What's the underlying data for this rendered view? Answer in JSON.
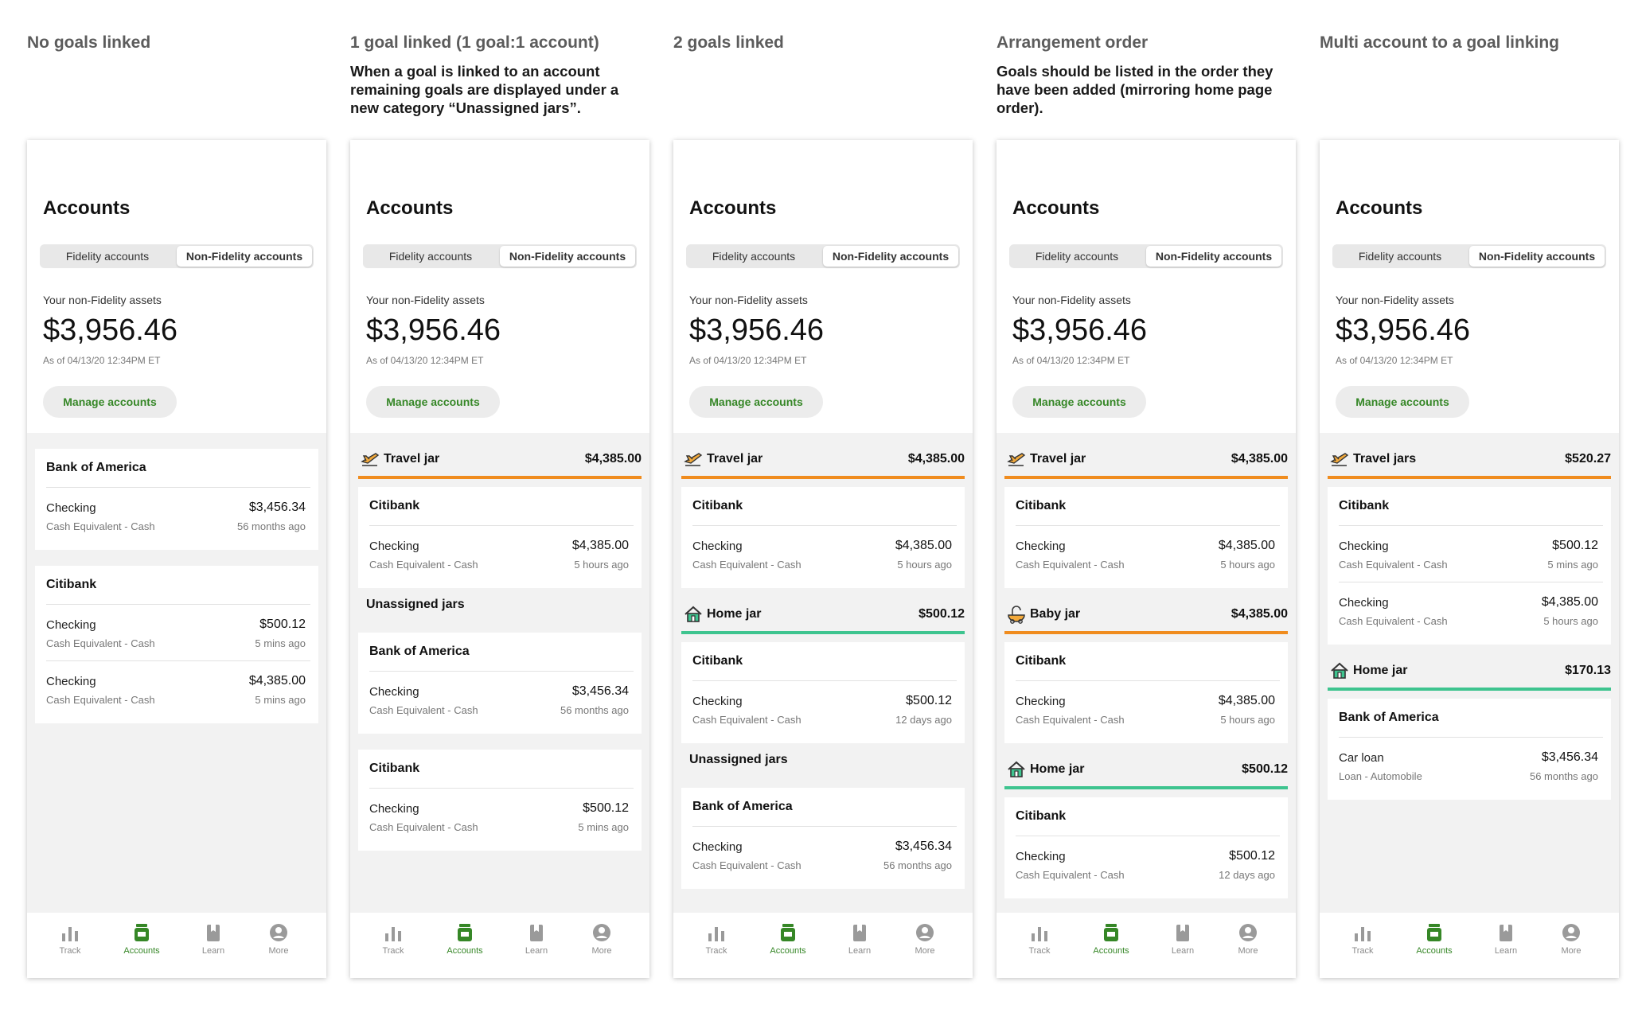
{
  "common": {
    "accounts_title": "Accounts",
    "tab_fidelity": "Fidelity accounts",
    "tab_non_fidelity": "Non-Fidelity accounts",
    "assets_label": "Your non-Fidelity assets",
    "assets_value": "$3,956.46",
    "as_of": "As of 04/13/20 12:34PM ET",
    "manage_button": "Manage accounts",
    "unassigned_label": "Unassigned jars",
    "nav": {
      "track": "Track",
      "accounts": "Accounts",
      "learn": "Learn",
      "more": "More"
    }
  },
  "colors": {
    "accent_green": "#368727",
    "orange_line": "#f08c1e",
    "teal_line": "#3ec48f",
    "background_gray": "#f2f2f2"
  },
  "icons": [
    "travel-jar-icon",
    "home-jar-icon",
    "baby-jar-icon",
    "track-icon",
    "accounts-icon",
    "learn-icon",
    "more-icon"
  ],
  "columns": [
    {
      "heading": "No goals linked",
      "note": "",
      "items": [
        {
          "kind": "card",
          "bank": "Bank of America",
          "rows": [
            {
              "type": "Checking",
              "sub": "Cash Equivalent - Cash",
              "amount": "$3,456.34",
              "time": "56 months ago"
            }
          ]
        },
        {
          "kind": "card",
          "bank": "Citibank",
          "rows": [
            {
              "type": "Checking",
              "sub": "Cash Equivalent - Cash",
              "amount": "$500.12",
              "time": "5 mins ago"
            },
            {
              "type": "Checking",
              "sub": "Cash Equivalent - Cash",
              "amount": "$4,385.00",
              "time": "5 mins ago"
            }
          ]
        }
      ]
    },
    {
      "heading": "1 goal linked  (1 goal:1 account)",
      "note": "When a goal is linked to an account remaining goals are displayed under a new category “Unassigned jars”.",
      "items": [
        {
          "kind": "jar",
          "name": "Travel jar",
          "amount": "$4,385.00",
          "icon": "travel",
          "line": "orange"
        },
        {
          "kind": "card",
          "bank": "Citibank",
          "rows": [
            {
              "type": "Checking",
              "sub": "Cash Equivalent - Cash",
              "amount": "$4,385.00",
              "time": "5 hours ago"
            }
          ]
        },
        {
          "kind": "unassigned"
        },
        {
          "kind": "card",
          "bank": "Bank of America",
          "rows": [
            {
              "type": "Checking",
              "sub": "Cash Equivalent - Cash",
              "amount": "$3,456.34",
              "time": "56 months ago"
            }
          ]
        },
        {
          "kind": "card",
          "bank": "Citibank",
          "rows": [
            {
              "type": "Checking",
              "sub": "Cash Equivalent - Cash",
              "amount": "$500.12",
              "time": "5 mins ago"
            }
          ]
        }
      ]
    },
    {
      "heading": "2 goals linked",
      "note": "",
      "items": [
        {
          "kind": "jar",
          "name": "Travel jar",
          "amount": "$4,385.00",
          "icon": "travel",
          "line": "orange"
        },
        {
          "kind": "card",
          "bank": "Citibank",
          "rows": [
            {
              "type": "Checking",
              "sub": "Cash Equivalent - Cash",
              "amount": "$4,385.00",
              "time": "5 hours ago"
            }
          ]
        },
        {
          "kind": "jar",
          "name": "Home jar",
          "amount": "$500.12",
          "icon": "home",
          "line": "green"
        },
        {
          "kind": "card",
          "bank": "Citibank",
          "rows": [
            {
              "type": "Checking",
              "sub": "Cash Equivalent - Cash",
              "amount": "$500.12",
              "time": "12 days ago"
            }
          ]
        },
        {
          "kind": "unassigned"
        },
        {
          "kind": "card",
          "bank": "Bank of America",
          "rows": [
            {
              "type": "Checking",
              "sub": "Cash Equivalent - Cash",
              "amount": "$3,456.34",
              "time": "56 months ago"
            }
          ]
        }
      ]
    },
    {
      "heading": "Arrangement order",
      "note": "Goals should be listed in the order they have been added (mirroring home page order).",
      "items": [
        {
          "kind": "jar",
          "name": "Travel jar",
          "amount": "$4,385.00",
          "icon": "travel",
          "line": "orange"
        },
        {
          "kind": "card",
          "bank": "Citibank",
          "rows": [
            {
              "type": "Checking",
              "sub": "Cash Equivalent - Cash",
              "amount": "$4,385.00",
              "time": "5 hours ago"
            }
          ]
        },
        {
          "kind": "jar",
          "name": "Baby jar",
          "amount": "$4,385.00",
          "icon": "baby",
          "line": "orange"
        },
        {
          "kind": "card",
          "bank": "Citibank",
          "rows": [
            {
              "type": "Checking",
              "sub": "Cash Equivalent - Cash",
              "amount": "$4,385.00",
              "time": "5 hours ago"
            }
          ]
        },
        {
          "kind": "jar",
          "name": "Home jar",
          "amount": "$500.12",
          "icon": "home",
          "line": "green"
        },
        {
          "kind": "card",
          "bank": "Citibank",
          "rows": [
            {
              "type": "Checking",
              "sub": "Cash Equivalent - Cash",
              "amount": "$500.12",
              "time": "12 days ago"
            }
          ]
        }
      ]
    },
    {
      "heading": "Multi account to a goal linking",
      "note": "",
      "items": [
        {
          "kind": "jar",
          "name": "Travel jars",
          "amount": "$520.27",
          "icon": "travel",
          "line": "orange"
        },
        {
          "kind": "card",
          "bank": "Citibank",
          "rows": [
            {
              "type": "Checking",
              "sub": "Cash Equivalent - Cash",
              "amount": "$500.12",
              "time": "5 mins ago"
            },
            {
              "type": "Checking",
              "sub": "Cash Equivalent - Cash",
              "amount": "$4,385.00",
              "time": "5 hours ago"
            }
          ]
        },
        {
          "kind": "jar",
          "name": "Home jar",
          "amount": "$170.13",
          "icon": "home",
          "line": "green"
        },
        {
          "kind": "card",
          "bank": "Bank of America",
          "rows": [
            {
              "type": "Car loan",
              "sub": "Loan - Automobile",
              "amount": "$3,456.34",
              "time": "56 months ago"
            }
          ]
        }
      ]
    }
  ]
}
